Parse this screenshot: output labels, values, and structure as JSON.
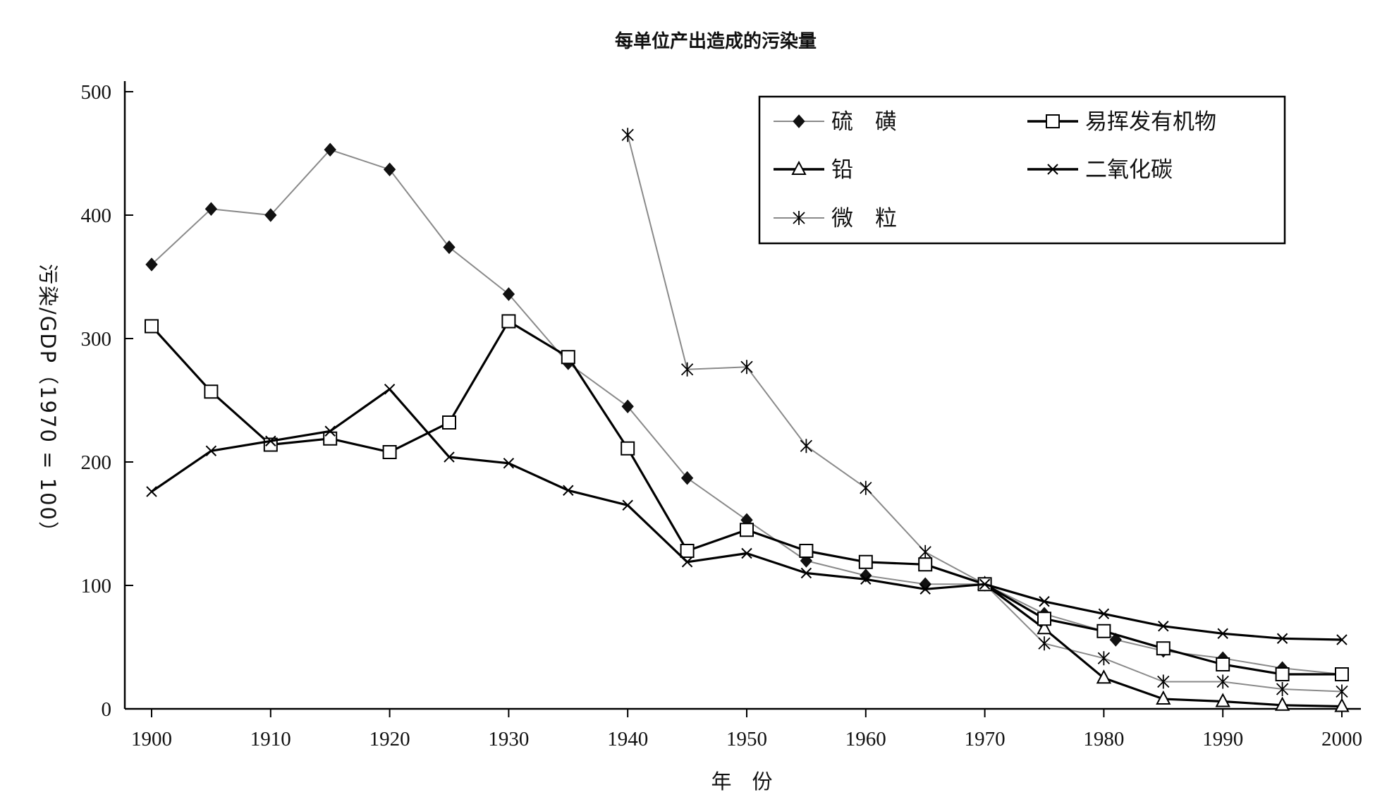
{
  "chart_data": {
    "type": "line",
    "title": "每单位产出造成的污染量",
    "xlabel": "年　份",
    "ylabel": "污染/GDP（1970 = 100）",
    "xlim": [
      1900,
      2000
    ],
    "ylim": [
      0,
      500
    ],
    "x_ticks": [
      "1900",
      "1910",
      "1920",
      "1930",
      "1940",
      "1950",
      "1960",
      "1970",
      "1980",
      "1990",
      "2000"
    ],
    "y_ticks": [
      "0",
      "100",
      "200",
      "300",
      "400",
      "500"
    ],
    "grid": false,
    "legend_position": "top-right",
    "series": [
      {
        "name": "硫　磺",
        "marker": "diamond-filled",
        "line": "thin-gray",
        "color": "#888888",
        "x": [
          1900,
          1905,
          1910,
          1915,
          1920,
          1925,
          1930,
          1935,
          1940,
          1945,
          1950,
          1955,
          1960,
          1965,
          1970,
          1975,
          1980,
          1981,
          1985,
          1990,
          1995,
          2000
        ],
        "y": [
          360,
          405,
          400,
          453,
          437,
          374,
          336,
          280,
          245,
          187,
          153,
          120,
          108,
          101,
          101,
          77,
          63,
          56,
          47,
          41,
          33,
          28
        ]
      },
      {
        "name": "易挥发有机物",
        "marker": "square-open",
        "line": "thick-black",
        "color": "#000000",
        "x": [
          1900,
          1905,
          1910,
          1915,
          1920,
          1925,
          1930,
          1935,
          1940,
          1945,
          1950,
          1955,
          1960,
          1965,
          1970,
          1975,
          1980,
          1985,
          1990,
          1995,
          2000
        ],
        "y": [
          310,
          257,
          214,
          219,
          208,
          232,
          314,
          285,
          211,
          128,
          145,
          128,
          119,
          117,
          101,
          73,
          63,
          49,
          36,
          28,
          28
        ]
      },
      {
        "name": "铅",
        "marker": "triangle-open",
        "line": "thick-black",
        "color": "#000000",
        "x": [
          1970,
          1975,
          1980,
          1985,
          1990,
          1995,
          2000
        ],
        "y": [
          101,
          65,
          25,
          8,
          6,
          3,
          2
        ]
      },
      {
        "name": "二氧化碳",
        "marker": "x",
        "line": "thick-black",
        "color": "#000000",
        "x": [
          1900,
          1905,
          1910,
          1915,
          1920,
          1925,
          1930,
          1935,
          1940,
          1945,
          1950,
          1955,
          1960,
          1965,
          1970,
          1975,
          1980,
          1985,
          1990,
          1995,
          2000
        ],
        "y": [
          176,
          209,
          217,
          225,
          259,
          204,
          199,
          177,
          165,
          119,
          126,
          110,
          105,
          97,
          101,
          87,
          77,
          67,
          61,
          57,
          56
        ]
      },
      {
        "name": "微　粒",
        "marker": "asterisk",
        "line": "thin-gray",
        "color": "#888888",
        "x": [
          1940,
          1945,
          1950,
          1955,
          1960,
          1965,
          1970,
          1975,
          1980,
          1985,
          1990,
          1995,
          2000
        ],
        "y": [
          465,
          275,
          277,
          213,
          179,
          127,
          101,
          53,
          41,
          22,
          22,
          16,
          14
        ]
      }
    ]
  }
}
